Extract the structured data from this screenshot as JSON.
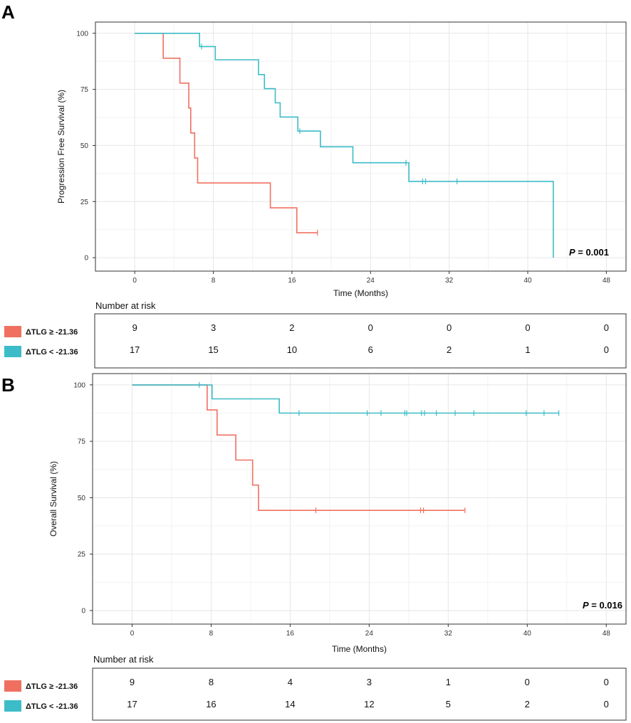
{
  "chart_data": [
    {
      "type": "line",
      "subtype": "kaplan-meier",
      "panel_label": "A",
      "xlabel": "Time (Months)",
      "ylabel": "Progression Free Survival (%)",
      "xlim": [
        -4,
        50
      ],
      "ylim": [
        -6,
        105
      ],
      "x_ticks": [
        0,
        8,
        16,
        24,
        32,
        40,
        48
      ],
      "y_ticks": [
        0,
        25,
        50,
        75,
        100
      ],
      "grid": true,
      "p_value": {
        "label": "P",
        "text": " = 0.001"
      },
      "series": [
        {
          "name": "ΔTLG ≥ -21.36",
          "color": "#f07060",
          "steps": [
            [
              0,
              100
            ],
            [
              2.9,
              100
            ],
            [
              2.9,
              88.9
            ],
            [
              4.6,
              88.9
            ],
            [
              4.6,
              77.8
            ],
            [
              5.5,
              77.8
            ],
            [
              5.5,
              66.7
            ],
            [
              5.7,
              66.7
            ],
            [
              5.7,
              55.6
            ],
            [
              6.1,
              55.6
            ],
            [
              6.1,
              44.4
            ],
            [
              6.4,
              44.4
            ],
            [
              6.4,
              33.3
            ],
            [
              13.8,
              33.3
            ],
            [
              13.8,
              22.2
            ],
            [
              16.5,
              22.2
            ],
            [
              16.5,
              11.1
            ],
            [
              18.6,
              11.1
            ]
          ],
          "censor": [
            [
              18.6,
              11.1
            ]
          ]
        },
        {
          "name": "ΔTLG < -21.36",
          "color": "#3cbcc8",
          "steps": [
            [
              0,
              100
            ],
            [
              6.6,
              100
            ],
            [
              6.6,
              94.1
            ],
            [
              8.2,
              94.1
            ],
            [
              8.2,
              88.2
            ],
            [
              12.6,
              88.2
            ],
            [
              12.6,
              81.6
            ],
            [
              13.2,
              81.6
            ],
            [
              13.2,
              75.3
            ],
            [
              14.3,
              75.3
            ],
            [
              14.3,
              69
            ],
            [
              14.8,
              69
            ],
            [
              14.8,
              62.7
            ],
            [
              16.6,
              62.7
            ],
            [
              16.6,
              56.4
            ],
            [
              18.9,
              56.4
            ],
            [
              18.9,
              49.4
            ],
            [
              22.2,
              49.4
            ],
            [
              22.2,
              42.3
            ],
            [
              27.9,
              42.3
            ],
            [
              27.9,
              34
            ],
            [
              42.6,
              34
            ],
            [
              42.6,
              0
            ]
          ],
          "censor": [
            [
              6.8,
              94.1
            ],
            [
              16.8,
              56.4
            ],
            [
              27.6,
              42.3
            ],
            [
              29.3,
              34
            ],
            [
              29.6,
              34
            ],
            [
              32.8,
              34
            ]
          ]
        }
      ],
      "risk_table": {
        "title": "Number at risk",
        "rows": [
          {
            "label": "ΔTLG ≥ -21.36",
            "color": "#f07060",
            "counts": [
              "9",
              "3",
              "2",
              "0",
              "0",
              "0",
              "0"
            ]
          },
          {
            "label": "ΔTLG < -21.36",
            "color": "#3cbcc8",
            "counts": [
              "17",
              "15",
              "10",
              "6",
              "2",
              "1",
              "0"
            ]
          }
        ]
      }
    },
    {
      "type": "line",
      "subtype": "kaplan-meier",
      "panel_label": "B",
      "xlabel": "Time (Months)",
      "ylabel": "Overall Survival (%)",
      "xlim": [
        -4,
        50
      ],
      "ylim": [
        -6,
        105
      ],
      "x_ticks": [
        0,
        8,
        16,
        24,
        32,
        40,
        48
      ],
      "y_ticks": [
        0,
        25,
        50,
        75,
        100
      ],
      "grid": true,
      "p_value": {
        "label": "P",
        "text": " = 0.016"
      },
      "series": [
        {
          "name": "ΔTLG ≥ -21.36",
          "color": "#f07060",
          "steps": [
            [
              0,
              100
            ],
            [
              7.6,
              100
            ],
            [
              7.6,
              88.9
            ],
            [
              8.6,
              88.9
            ],
            [
              8.6,
              77.8
            ],
            [
              10.5,
              77.8
            ],
            [
              10.5,
              66.7
            ],
            [
              12.2,
              66.7
            ],
            [
              12.2,
              55.6
            ],
            [
              12.8,
              55.6
            ],
            [
              12.8,
              44.4
            ],
            [
              33.7,
              44.4
            ]
          ],
          "censor": [
            [
              18.6,
              44.4
            ],
            [
              29.2,
              44.4
            ],
            [
              29.5,
              44.4
            ],
            [
              33.7,
              44.4
            ]
          ]
        },
        {
          "name": "ΔTLG < -21.36",
          "color": "#3cbcc8",
          "steps": [
            [
              0,
              100
            ],
            [
              8.1,
              100
            ],
            [
              8.1,
              93.8
            ],
            [
              14.9,
              93.8
            ],
            [
              14.9,
              87.5
            ],
            [
              43.2,
              87.5
            ]
          ],
          "censor": [
            [
              6.8,
              100
            ],
            [
              16.9,
              87.5
            ],
            [
              23.8,
              87.5
            ],
            [
              25.2,
              87.5
            ],
            [
              27.6,
              87.5
            ],
            [
              27.8,
              87.5
            ],
            [
              29.3,
              87.5
            ],
            [
              29.6,
              87.5
            ],
            [
              30.8,
              87.5
            ],
            [
              32.7,
              87.5
            ],
            [
              34.6,
              87.5
            ],
            [
              39.9,
              87.5
            ],
            [
              41.7,
              87.5
            ],
            [
              43.2,
              87.5
            ]
          ]
        }
      ],
      "risk_table": {
        "title": "Number at risk",
        "rows": [
          {
            "label": "ΔTLG ≥ -21.36",
            "color": "#f07060",
            "counts": [
              "9",
              "8",
              "4",
              "3",
              "1",
              "0",
              "0"
            ]
          },
          {
            "label": "ΔTLG < -21.36",
            "color": "#3cbcc8",
            "counts": [
              "17",
              "16",
              "14",
              "12",
              "5",
              "2",
              "0"
            ]
          }
        ]
      }
    }
  ]
}
